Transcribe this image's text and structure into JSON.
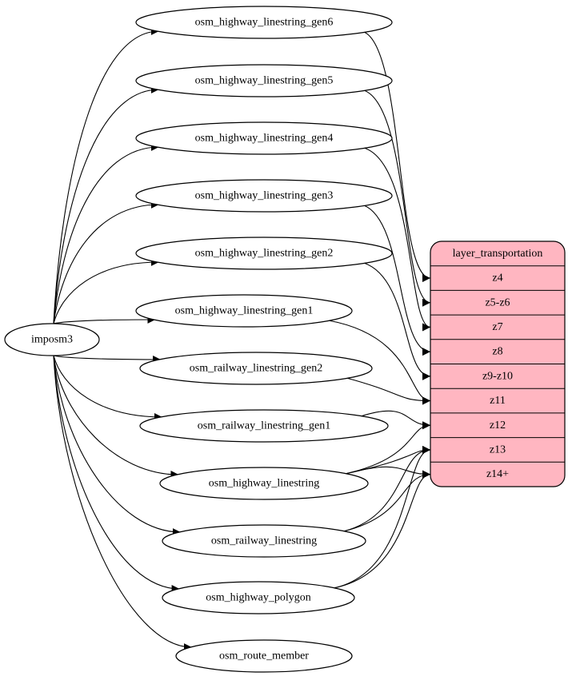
{
  "graph": {
    "source": {
      "id": "imposm3",
      "label": "imposm3"
    },
    "tables": [
      {
        "id": "gen6",
        "label": "osm_highway_linestring_gen6",
        "ports": [
          "z4"
        ]
      },
      {
        "id": "gen5",
        "label": "osm_highway_linestring_gen5",
        "ports": [
          "z5-z6"
        ]
      },
      {
        "id": "gen4",
        "label": "osm_highway_linestring_gen4",
        "ports": [
          "z7"
        ]
      },
      {
        "id": "gen3",
        "label": "osm_highway_linestring_gen3",
        "ports": [
          "z8"
        ]
      },
      {
        "id": "gen2",
        "label": "osm_highway_linestring_gen2",
        "ports": [
          "z9-z10"
        ]
      },
      {
        "id": "gen1",
        "label": "osm_highway_linestring_gen1",
        "ports": [
          "z11"
        ]
      },
      {
        "id": "rgen2",
        "label": "osm_railway_linestring_gen2",
        "ports": [
          "z11"
        ]
      },
      {
        "id": "rgen1",
        "label": "osm_railway_linestring_gen1",
        "ports": [
          "z12"
        ]
      },
      {
        "id": "hl",
        "label": "osm_highway_linestring",
        "ports": [
          "z12",
          "z13",
          "z14+"
        ]
      },
      {
        "id": "rl",
        "label": "osm_railway_linestring",
        "ports": [
          "z13",
          "z14+"
        ]
      },
      {
        "id": "hp",
        "label": "osm_highway_polygon",
        "ports": [
          "z13",
          "z14+"
        ]
      },
      {
        "id": "rm",
        "label": "osm_route_member",
        "ports": []
      }
    ],
    "layer": {
      "label": "layer_transportation",
      "fill": "#ffb6c1",
      "rows": [
        "z4",
        "z5-z6",
        "z7",
        "z8",
        "z9-z10",
        "z11",
        "z12",
        "z13",
        "z14+"
      ]
    }
  }
}
